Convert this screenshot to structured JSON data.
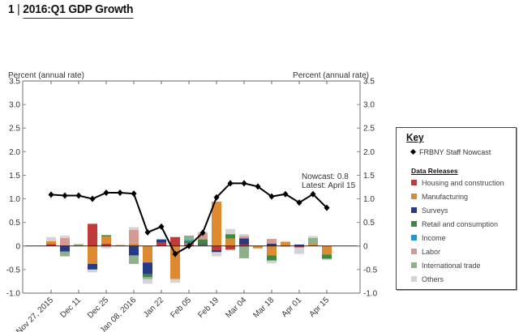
{
  "header": {
    "figure_number": "1",
    "separator": "|",
    "title": "2016:Q1 GDP Growth"
  },
  "legend": {
    "title": "Key",
    "nowcast_label": "FRBNY Staff Nowcast",
    "releases_heading": "Data Releases",
    "items": [
      {
        "label": "Housing and construction",
        "color": "#c0393b"
      },
      {
        "label": "Manufacturing",
        "color": "#dd8a30"
      },
      {
        "label": "Surveys",
        "color": "#263a86"
      },
      {
        "label": "Retail and consumption",
        "color": "#3c8a3e"
      },
      {
        "label": "Income",
        "color": "#1a9ad6"
      },
      {
        "label": "Labor",
        "color": "#d59a92"
      },
      {
        "label": "International trade",
        "color": "#8fb08a"
      },
      {
        "label": "Others",
        "color": "#d3d3d8"
      }
    ]
  },
  "annotation": {
    "line1": "Nowcast:  0.8",
    "line2": "Latest: April 15"
  },
  "chart_data": {
    "type": "bar",
    "subtype": "stacked-bar-with-line",
    "title": "2016:Q1 GDP Growth",
    "ylabel_left": "Percent (annual rate)",
    "ylabel_right": "Percent (annual rate)",
    "ylim": [
      -1.0,
      3.5
    ],
    "yticks": [
      "3.5",
      "3.0",
      "2.5",
      "2.0",
      "1.5",
      "1.0",
      "0.5",
      "0",
      "-0.5",
      "-1.0"
    ],
    "ytick_values": [
      3.5,
      3.0,
      2.5,
      2.0,
      1.5,
      1.0,
      0.5,
      0,
      -0.5,
      -1.0
    ],
    "grid": false,
    "legend_position": "right",
    "x": [
      "Nov 27, 2015",
      "Dec 04",
      "Dec 11",
      "Dec 18",
      "Dec 25",
      "Jan 01",
      "Jan 08, 2016",
      "Jan 15",
      "Jan 22",
      "Jan 29",
      "Feb 05",
      "Feb 12",
      "Feb 19",
      "Feb 26",
      "Mar 04",
      "Mar 11",
      "Mar 18",
      "Mar 25",
      "Apr 01",
      "Apr 08",
      "Apr 15"
    ],
    "xtick_labels": [
      "Nov 27, 2015",
      "Dec 11",
      "Dec 25",
      "Jan 08, 2016",
      "Jan 22",
      "Feb 05",
      "Feb 19",
      "Mar 04",
      "Mar 18",
      "Apr 01",
      "Apr 15"
    ],
    "nowcast": {
      "name": "FRBNY Staff Nowcast",
      "values": [
        1.09,
        1.07,
        1.07,
        1.0,
        1.13,
        1.13,
        1.11,
        0.29,
        0.41,
        -0.17,
        0.0,
        0.28,
        1.03,
        1.33,
        1.33,
        1.26,
        1.05,
        1.1,
        0.92,
        1.1,
        0.81
      ]
    },
    "stack_order": [
      "Housing and construction",
      "Manufacturing",
      "Surveys",
      "Retail and consumption",
      "Income",
      "Labor",
      "International trade",
      "Others"
    ],
    "series": [
      {
        "name": "Housing and construction",
        "values": [
          0.04,
          0,
          0,
          0.47,
          0.05,
          0,
          0,
          0,
          0.07,
          0.19,
          0.03,
          0,
          -0.09,
          -0.08,
          0.03,
          0,
          0,
          0,
          -0.03,
          0,
          0
        ]
      },
      {
        "name": "Manufacturing",
        "values": [
          0.06,
          0,
          0.02,
          -0.38,
          0.15,
          0.02,
          0.05,
          -0.35,
          0,
          -0.7,
          0.02,
          0.02,
          0.94,
          0.16,
          0,
          -0.05,
          -0.2,
          0.09,
          0,
          0.04,
          -0.18
        ]
      },
      {
        "name": "Surveys",
        "values": [
          0,
          -0.12,
          0,
          -0.12,
          0,
          0,
          -0.2,
          -0.25,
          0.07,
          0,
          0.01,
          0.02,
          -0.04,
          0,
          0.13,
          0,
          0.05,
          0,
          0.03,
          0,
          0
        ]
      },
      {
        "name": "Retail and consumption",
        "values": [
          0,
          0,
          0,
          0,
          0.03,
          0,
          0,
          -0.06,
          0,
          0,
          0.05,
          0.1,
          0,
          0.09,
          0,
          0,
          -0.11,
          0,
          0,
          0,
          -0.09
        ]
      },
      {
        "name": "Income",
        "values": [
          0,
          0,
          0,
          0,
          0,
          0,
          0,
          0,
          0,
          0,
          0.02,
          0,
          0,
          0,
          0,
          0,
          0,
          0,
          0,
          0,
          0
        ]
      },
      {
        "name": "Labor",
        "values": [
          0,
          0.17,
          0,
          0,
          0,
          0.0,
          0.29,
          0,
          0,
          0,
          0,
          0.13,
          0,
          0,
          0.05,
          0,
          0.1,
          0,
          0,
          0,
          0
        ]
      },
      {
        "name": "International trade",
        "values": [
          0,
          -0.1,
          0.02,
          0,
          0,
          -0.0,
          -0.18,
          -0.04,
          0,
          0,
          0.09,
          0,
          0,
          0,
          -0.26,
          0,
          0,
          0,
          0,
          0.13,
          0
        ]
      },
      {
        "name": "Others",
        "values": [
          0.09,
          0.05,
          0,
          -0.06,
          -0.05,
          0,
          0.06,
          -0.1,
          0,
          -0.08,
          0.0,
          0.03,
          -0.09,
          0.11,
          0.04,
          0,
          -0.06,
          -0.02,
          -0.14,
          0.04,
          -0.03
        ]
      }
    ],
    "annotations": [
      "Nowcast:  0.8",
      "Latest: April 15"
    ]
  }
}
